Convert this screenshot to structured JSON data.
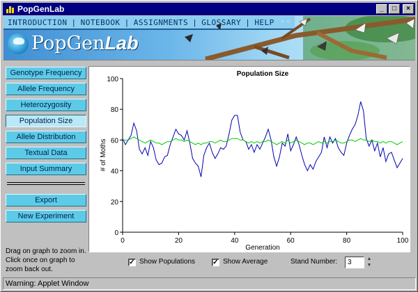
{
  "window": {
    "title": "PopGenLab",
    "minimize_glyph": "_",
    "maximize_glyph": "□",
    "close_glyph": "×"
  },
  "nav": {
    "items": [
      "INTRODUCTION",
      "NOTEBOOK",
      "ASSIGNMENTS",
      "GLOSSARY",
      "HELP"
    ],
    "separator": "|",
    "dots": "⁘⁘"
  },
  "logo": {
    "text_regular": "PopGen",
    "text_bold": "Lab"
  },
  "sidebar": {
    "buttons": [
      {
        "label": "Genotype Frequency",
        "active": false
      },
      {
        "label": "Allele Frequency",
        "active": false
      },
      {
        "label": "Heterozygosity",
        "active": false
      },
      {
        "label": "Population Size",
        "active": true
      },
      {
        "label": "Allele Distribution",
        "active": false
      },
      {
        "label": "Textual Data",
        "active": false
      },
      {
        "label": "Input Summary",
        "active": false
      }
    ],
    "actions": [
      {
        "label": "Export"
      },
      {
        "label": "New Experiment"
      }
    ],
    "hint": "Drag on graph to zoom in. Click once on graph to zoom back out."
  },
  "controls": {
    "show_populations": {
      "label": "Show Populations",
      "checked": true
    },
    "show_average": {
      "label": "Show Average",
      "checked": true
    },
    "stand_number": {
      "label": "Stand Number:",
      "value": "3"
    },
    "check_glyph": "✓",
    "spin_up": "▲",
    "spin_down": "▼"
  },
  "status": {
    "text": "Warning: Applet Window"
  },
  "chart_data": {
    "type": "line",
    "title": "Population Size",
    "xlabel": "Generation",
    "ylabel": "# of Moths",
    "xlim": [
      0,
      100
    ],
    "ylim": [
      0,
      100
    ],
    "xticks": [
      0,
      20,
      40,
      60,
      80,
      100
    ],
    "yticks": [
      0,
      20,
      40,
      60,
      80,
      100
    ],
    "grid": false,
    "series": [
      {
        "color": "#0000b0",
        "values": [
          61,
          57,
          60,
          63,
          71,
          66,
          54,
          51,
          55,
          50,
          59,
          55,
          47,
          44,
          45,
          49,
          50,
          57,
          62,
          67,
          64,
          63,
          60,
          66,
          58,
          48,
          45,
          43,
          36,
          50,
          55,
          58,
          52,
          48,
          51,
          55,
          54,
          56,
          64,
          73,
          76,
          76,
          65,
          60,
          59,
          54,
          57,
          52,
          57,
          54,
          58,
          62,
          67,
          60,
          49,
          43,
          49,
          58,
          56,
          64,
          53,
          57,
          62,
          57,
          50,
          44,
          40,
          44,
          41,
          46,
          49,
          52,
          62,
          55,
          62,
          58,
          61,
          55,
          52,
          50,
          58,
          63,
          67,
          70,
          76,
          85,
          79,
          61,
          56,
          60,
          53,
          58,
          49,
          55,
          46,
          51,
          52,
          47,
          42,
          45,
          48
        ]
      },
      {
        "color": "#00cc00",
        "values": [
          59,
          60,
          60,
          61,
          62,
          61,
          60,
          59,
          58,
          59,
          60,
          59,
          58,
          58,
          57,
          58,
          59,
          59,
          60,
          61,
          60,
          60,
          59,
          60,
          59,
          58,
          57,
          58,
          57,
          58,
          58,
          59,
          59,
          58,
          59,
          60,
          59,
          59,
          60,
          61,
          61,
          61,
          60,
          60,
          59,
          58,
          59,
          58,
          59,
          58,
          59,
          59,
          60,
          59,
          58,
          57,
          58,
          59,
          58,
          60,
          58,
          59,
          60,
          59,
          58,
          57,
          58,
          58,
          57,
          58,
          59,
          58,
          59,
          58,
          59,
          59,
          60,
          59,
          58,
          58,
          59,
          60,
          60,
          59,
          60,
          61,
          60,
          60,
          59,
          60,
          59,
          59,
          58,
          59,
          58,
          59,
          59,
          58,
          57,
          58,
          59
        ]
      }
    ]
  }
}
